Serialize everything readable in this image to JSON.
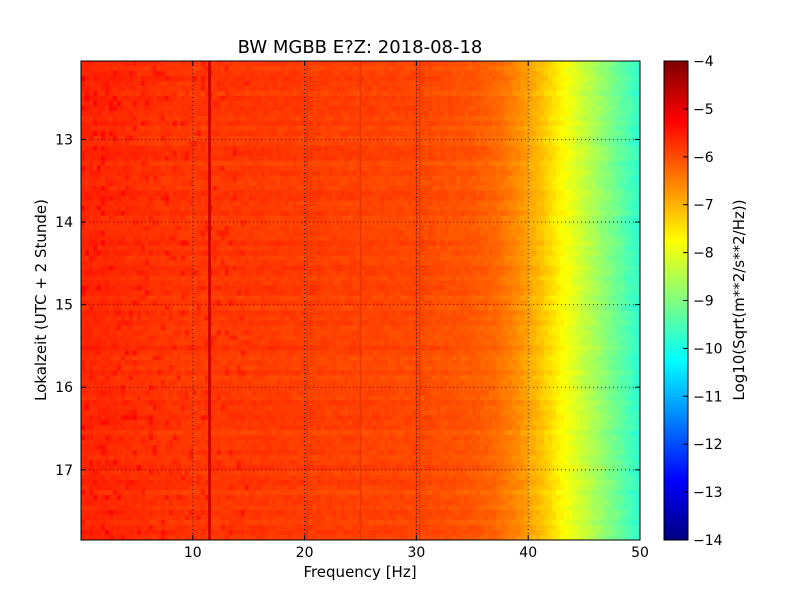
{
  "chart_data": {
    "type": "heatmap",
    "title": "BW MGBB E?Z: 2018-08-18",
    "xlabel": "Frequency [Hz]",
    "ylabel": "Lokalzeit (UTC + 2 Stunde)",
    "xlim": [
      0,
      50
    ],
    "ylim": [
      17.85,
      12.05
    ],
    "x_ticks": [
      10,
      20,
      30,
      40,
      50
    ],
    "y_ticks": [
      13,
      14,
      15,
      16,
      17
    ],
    "grid": true,
    "colormap": "jet",
    "colorbar": {
      "label": "Log10(Sqrt(m**2/s**2/Hz))",
      "range": [
        -14,
        -4
      ],
      "ticks": [
        -4,
        -5,
        -6,
        -7,
        -8,
        -9,
        -10,
        -11,
        -12,
        -13,
        -14
      ]
    },
    "spectrum_profile": {
      "frequency_hz": [
        0,
        5,
        10,
        15,
        20,
        25,
        30,
        35,
        37,
        39,
        41,
        43,
        45,
        47,
        49,
        50
      ],
      "log10_amplitude": [
        -5.6,
        -5.7,
        -5.8,
        -5.8,
        -5.85,
        -5.9,
        -5.95,
        -6.1,
        -6.25,
        -6.6,
        -7.1,
        -7.7,
        -8.3,
        -8.9,
        -9.5,
        -9.8
      ]
    },
    "spectral_lines_hz": [
      11.5,
      20.2,
      25.0,
      30.0,
      30.3
    ]
  }
}
